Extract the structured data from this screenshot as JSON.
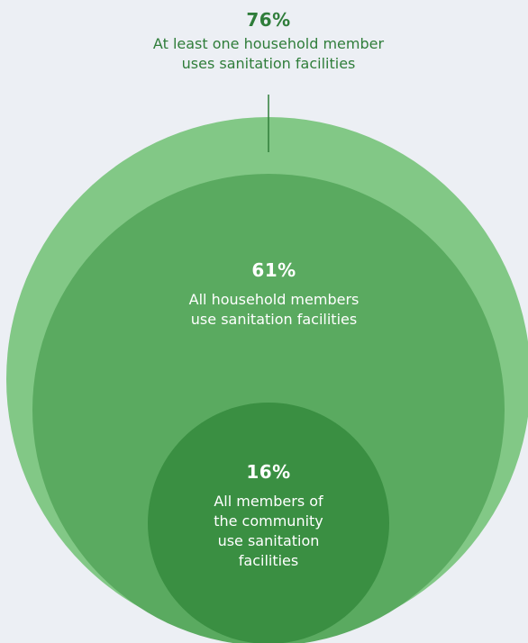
{
  "colors": {
    "background": "#eceff4",
    "outer_circle": "#82c886",
    "middle_circle": "#5aaa60",
    "inner_circle": "#3a8f42",
    "outer_text": "#2f7d3a",
    "inner_text": "#ffffff",
    "connector": "#2f7d3a"
  },
  "levels": [
    {
      "id": "outer",
      "percent": "76%",
      "line1": "At least one household member",
      "line2": "uses sanitation facilities"
    },
    {
      "id": "middle",
      "percent": "61%",
      "line1": "All household members",
      "line2": "use sanitation facilities"
    },
    {
      "id": "inner",
      "percent": "16%",
      "line1": "All members of",
      "line2": "the community",
      "line3": "use sanitation",
      "line4": "facilities"
    }
  ]
}
